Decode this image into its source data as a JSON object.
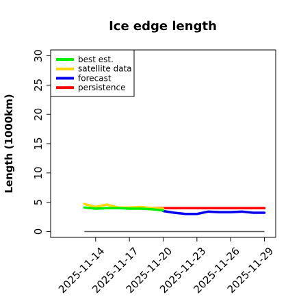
{
  "chart_data": {
    "type": "line",
    "title": "Ice edge length",
    "xlabel": "",
    "ylabel": "Length (1000km)",
    "ylim": [
      -1,
      31
    ],
    "yticks": [
      0,
      5,
      10,
      15,
      20,
      25,
      30
    ],
    "xlim": [
      "2025-11-10",
      "2025-11-30"
    ],
    "xticks": [
      "2025-11-14",
      "2025-11-17",
      "2025-11-20",
      "2025-11-23",
      "2025-11-26",
      "2025-11-29"
    ],
    "highlight_tick": "2025-11-20",
    "highlight_color": "#228B22",
    "grid": false,
    "legend_position": "top-left",
    "baseline": {
      "y": 0,
      "x_range": [
        "2025-11-13",
        "2025-11-29"
      ],
      "color": "#555555"
    },
    "series": [
      {
        "name": "best est.",
        "color": "#00ee00",
        "points": [
          [
            "2025-11-13",
            4.1
          ],
          [
            "2025-11-14",
            3.9
          ],
          [
            "2025-11-15",
            4.0
          ],
          [
            "2025-11-16",
            4.0
          ],
          [
            "2025-11-17",
            3.9
          ],
          [
            "2025-11-18",
            3.9
          ],
          [
            "2025-11-19",
            3.8
          ],
          [
            "2025-11-20",
            3.6
          ]
        ]
      },
      {
        "name": "satellite data",
        "color": "#ffd700",
        "points": [
          [
            "2025-11-13",
            4.7
          ],
          [
            "2025-11-14",
            4.2
          ],
          [
            "2025-11-15",
            4.6
          ],
          [
            "2025-11-16",
            4.1
          ],
          [
            "2025-11-17",
            4.1
          ],
          [
            "2025-11-18",
            4.2
          ],
          [
            "2025-11-19",
            4.0
          ],
          [
            "2025-11-20",
            3.9
          ]
        ]
      },
      {
        "name": "forecast",
        "color": "#0000ee",
        "points": [
          [
            "2025-11-20",
            3.5
          ],
          [
            "2025-11-21",
            3.2
          ],
          [
            "2025-11-22",
            3.0
          ],
          [
            "2025-11-23",
            3.0
          ],
          [
            "2025-11-24",
            3.4
          ],
          [
            "2025-11-25",
            3.3
          ],
          [
            "2025-11-26",
            3.3
          ],
          [
            "2025-11-27",
            3.4
          ],
          [
            "2025-11-28",
            3.2
          ],
          [
            "2025-11-29",
            3.2
          ]
        ]
      },
      {
        "name": "persistence",
        "color": "#ff0000",
        "points": [
          [
            "2025-11-19",
            4.0
          ],
          [
            "2025-11-20",
            4.0
          ],
          [
            "2025-11-21",
            4.0
          ],
          [
            "2025-11-22",
            4.0
          ],
          [
            "2025-11-23",
            4.0
          ],
          [
            "2025-11-24",
            4.0
          ],
          [
            "2025-11-25",
            4.0
          ],
          [
            "2025-11-26",
            4.0
          ],
          [
            "2025-11-27",
            4.0
          ],
          [
            "2025-11-28",
            4.0
          ],
          [
            "2025-11-29",
            4.0
          ]
        ]
      }
    ]
  }
}
